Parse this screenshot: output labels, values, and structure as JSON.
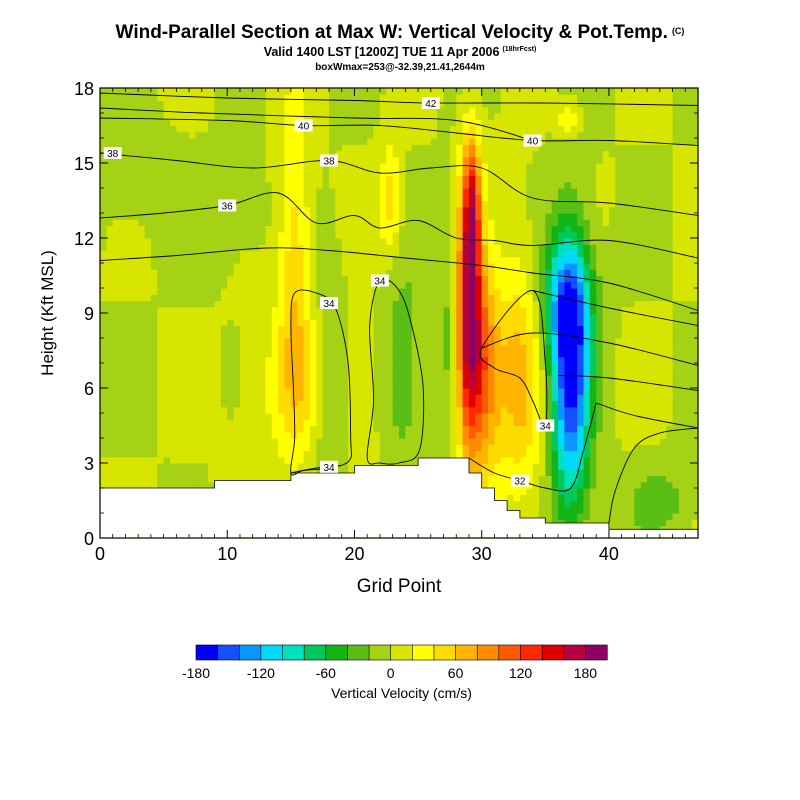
{
  "header": {
    "title": "Wind-Parallel Section at Max W: Vertical Velocity & Pot.Temp.",
    "title_mark": "(C)",
    "subtitle": "Valid 1400 LST [1200Z] TUE 11 Apr 2006",
    "subtitle_mark": "(18hrFcst)",
    "box_info": "boxWmax=253@-32.39,21.41,2644m"
  },
  "chart_data": {
    "type": "heatmap",
    "title": "Wind-Parallel Section at Max W: Vertical Velocity & Pot.Temp.",
    "xlabel": "Grid Point",
    "ylabel": "Height (Kft MSL)",
    "xlim": [
      0,
      47
    ],
    "ylim": [
      0,
      18
    ],
    "x_ticks": [
      0,
      10,
      20,
      30,
      40
    ],
    "y_ticks": [
      0,
      3,
      6,
      9,
      12,
      15,
      18
    ],
    "colorbar": {
      "label": "Vertical Velocity (cm/s)",
      "tick_labels": [
        "-180",
        "-120",
        "-60",
        "0",
        "60",
        "120",
        "180"
      ],
      "tick_values": [
        -180,
        -120,
        -60,
        0,
        60,
        120,
        180
      ],
      "min": -180,
      "step": 20,
      "colors": [
        "#0000ff",
        "#1450ff",
        "#0a96ff",
        "#00d9ff",
        "#00dfbe",
        "#00c85a",
        "#14b414",
        "#5abe14",
        "#a5d214",
        "#d7e600",
        "#ffff00",
        "#ffdc00",
        "#ffb400",
        "#ff8c00",
        "#ff5a00",
        "#ff2800",
        "#dc0000",
        "#b4003c",
        "#8c0064"
      ]
    },
    "background_w": 0,
    "updrafts": [
      {
        "x": 15.3,
        "y": 11,
        "sx": 0.9,
        "sy": 4.5,
        "w": 55
      },
      {
        "x": 16.5,
        "y": 6,
        "sx": 3.2,
        "sy": 2.2,
        "w": 35
      },
      {
        "x": 22.8,
        "y": 13.5,
        "sx": 0.6,
        "sy": 1.6,
        "w": 50
      },
      {
        "x": 29.0,
        "y": 8.5,
        "sx": 0.75,
        "sy": 3.6,
        "w": 175
      },
      {
        "x": 29.2,
        "y": 13.5,
        "sx": 0.5,
        "sy": 2.0,
        "w": 100
      },
      {
        "x": 30.3,
        "y": 6.5,
        "sx": 0.9,
        "sy": 3.0,
        "w": 80
      },
      {
        "x": 33.0,
        "y": 6.5,
        "sx": 1.3,
        "sy": 3.5,
        "w": 65
      },
      {
        "x": 36.8,
        "y": 16.8,
        "sx": 0.6,
        "sy": 0.5,
        "w": 40
      }
    ],
    "downdrafts": [
      {
        "x": 37.0,
        "y": 6.5,
        "sx": 1.1,
        "sy": 3.8,
        "w": -165
      },
      {
        "x": 36.5,
        "y": 9.5,
        "sx": 1.5,
        "sy": 1.8,
        "w": -70
      },
      {
        "x": 18.0,
        "y": 5.8,
        "sx": 1.0,
        "sy": 3.2,
        "w": -40
      },
      {
        "x": 23.8,
        "y": 6.8,
        "sx": 1.1,
        "sy": 2.8,
        "w": -40
      },
      {
        "x": 27.5,
        "y": 8.5,
        "sx": 0.6,
        "sy": 3.5,
        "w": -35
      },
      {
        "x": 9.8,
        "y": 13,
        "sx": 2.5,
        "sy": 1.5,
        "w": -15
      },
      {
        "x": 44,
        "y": 1.5,
        "sx": 1.8,
        "sy": 1.0,
        "w": -30
      },
      {
        "x": 2.5,
        "y": 14.5,
        "sx": 2.0,
        "sy": 1.5,
        "w": -15
      }
    ],
    "terrain": [
      [
        0,
        2.0
      ],
      [
        9,
        2.0
      ],
      [
        9,
        2.3
      ],
      [
        15,
        2.3
      ],
      [
        15,
        2.6
      ],
      [
        20,
        2.6
      ],
      [
        20,
        2.9
      ],
      [
        25,
        2.9
      ],
      [
        25,
        3.2
      ],
      [
        29,
        3.2
      ],
      [
        29,
        2.6
      ],
      [
        30,
        2.6
      ],
      [
        30,
        2.0
      ],
      [
        31,
        2.0
      ],
      [
        31,
        1.5
      ],
      [
        32,
        1.5
      ],
      [
        32,
        1.1
      ],
      [
        33,
        1.1
      ],
      [
        33,
        0.8
      ],
      [
        35,
        0.8
      ],
      [
        35,
        0.6
      ],
      [
        40,
        0.6
      ],
      [
        40,
        0.35
      ],
      [
        47,
        0.35
      ]
    ],
    "theta_contours": [
      {
        "label": "42",
        "label_x": 26,
        "points": [
          [
            0,
            17.8
          ],
          [
            10,
            17.6
          ],
          [
            20,
            17.5
          ],
          [
            26,
            17.4
          ],
          [
            35,
            17.4
          ],
          [
            47,
            17.3
          ]
        ]
      },
      {
        "label": "40",
        "label_x": 16,
        "points": [
          [
            0,
            16.8
          ],
          [
            10,
            16.7
          ],
          [
            16,
            16.5
          ],
          [
            22,
            16.5
          ],
          [
            28,
            16.2
          ],
          [
            34,
            15.9
          ],
          [
            40,
            15.9
          ],
          [
            47,
            15.7
          ]
        ]
      },
      {
        "label": "40",
        "label_x": 34,
        "points": [
          [
            0,
            17.2
          ],
          [
            8,
            17.0
          ],
          [
            20,
            16.8
          ],
          [
            28,
            16.7
          ],
          [
            34,
            15.9
          ]
        ]
      },
      {
        "label": "38",
        "label_x": 18,
        "points": [
          [
            0,
            15.4
          ],
          [
            6,
            15.1
          ],
          [
            12,
            14.8
          ],
          [
            18,
            15.1
          ],
          [
            22,
            14.6
          ],
          [
            26,
            14.8
          ],
          [
            30,
            14.8
          ],
          [
            34,
            13.6
          ],
          [
            40,
            13.4
          ],
          [
            47,
            12.9
          ]
        ]
      },
      {
        "label": "38",
        "label_x": 1,
        "points": [
          [
            0,
            15.4
          ],
          [
            1,
            15.4
          ]
        ]
      },
      {
        "label": "36",
        "label_x": 10,
        "points": [
          [
            0,
            12.8
          ],
          [
            5,
            13.0
          ],
          [
            10,
            13.3
          ],
          [
            14,
            13.8
          ],
          [
            17,
            12.6
          ],
          [
            20,
            12.9
          ],
          [
            22,
            12.4
          ],
          [
            25,
            12.7
          ],
          [
            28,
            12.0
          ],
          [
            31,
            11.9
          ],
          [
            34,
            11.7
          ],
          [
            40,
            11.9
          ],
          [
            47,
            11.2
          ]
        ]
      },
      {
        "label": "",
        "label_x": -1,
        "points": [
          [
            0,
            11.1
          ],
          [
            6,
            11.3
          ],
          [
            13,
            11.6
          ],
          [
            18,
            11.5
          ],
          [
            24,
            11.2
          ],
          [
            30,
            10.9
          ],
          [
            34,
            10.6
          ],
          [
            40,
            10.2
          ],
          [
            47,
            9.1
          ]
        ]
      },
      {
        "label": "",
        "label_x": -1,
        "points": [
          [
            34,
            9.9
          ],
          [
            40,
            9.2
          ],
          [
            47,
            8.5
          ]
        ]
      },
      {
        "label": "",
        "label_x": -1,
        "points": [
          [
            30,
            7.6
          ],
          [
            34,
            8.2
          ],
          [
            40,
            7.8
          ],
          [
            47,
            6.9
          ]
        ]
      },
      {
        "label": "",
        "label_x": -1,
        "points": [
          [
            36,
            6.5
          ],
          [
            40,
            6.4
          ],
          [
            47,
            5.9
          ]
        ]
      },
      {
        "label": "",
        "label_x": -1,
        "points": [
          [
            39,
            5.4
          ],
          [
            42,
            4.9
          ],
          [
            47,
            4.4
          ]
        ]
      },
      {
        "label": "32",
        "label_x": 33,
        "points": [
          [
            29,
            3.2
          ],
          [
            31,
            2.6
          ],
          [
            33,
            2.3
          ],
          [
            35,
            2.0
          ],
          [
            37,
            2.0
          ],
          [
            38,
            3.5
          ],
          [
            39,
            5.4
          ]
        ]
      },
      {
        "label": "",
        "label_x": -1,
        "points": [
          [
            40,
            0.6
          ],
          [
            40.5,
            1.9
          ],
          [
            42,
            3.6
          ],
          [
            44,
            4.2
          ],
          [
            47,
            4.4
          ]
        ]
      }
    ],
    "theta_loops": [
      {
        "label": "34",
        "label_x": 18,
        "points": [
          [
            15,
            2.6
          ],
          [
            15.3,
            4
          ],
          [
            15.2,
            6
          ],
          [
            15,
            8.5
          ],
          [
            15.3,
            9.8
          ],
          [
            17,
            9.8
          ],
          [
            18.5,
            9.2
          ],
          [
            19.5,
            7
          ],
          [
            19.7,
            4
          ],
          [
            19.6,
            3.1
          ],
          [
            18,
            2.8
          ],
          [
            16,
            2.7
          ]
        ]
      },
      {
        "label": "34",
        "label_x": 22,
        "points": [
          [
            21,
            3.2
          ],
          [
            21.5,
            5.5
          ],
          [
            21.2,
            8.5
          ],
          [
            22,
            10.3
          ],
          [
            23.5,
            9.9
          ],
          [
            24.5,
            8.5
          ],
          [
            25.4,
            6
          ],
          [
            25.1,
            3.5
          ],
          [
            23.5,
            3.0
          ],
          [
            22,
            3.0
          ]
        ]
      },
      {
        "label": "34",
        "label_x": 35,
        "points": [
          [
            30,
            7.6
          ],
          [
            31,
            6.8
          ],
          [
            33,
            6.4
          ],
          [
            34,
            5.5
          ],
          [
            35,
            4.5
          ],
          [
            35,
            7.0
          ],
          [
            34,
            9.9
          ]
        ]
      },
      {
        "label": "34",
        "label_x": 18,
        "points": [
          [
            15,
            2.6
          ],
          [
            17,
            2.8
          ],
          [
            19,
            2.9
          ]
        ]
      }
    ]
  }
}
